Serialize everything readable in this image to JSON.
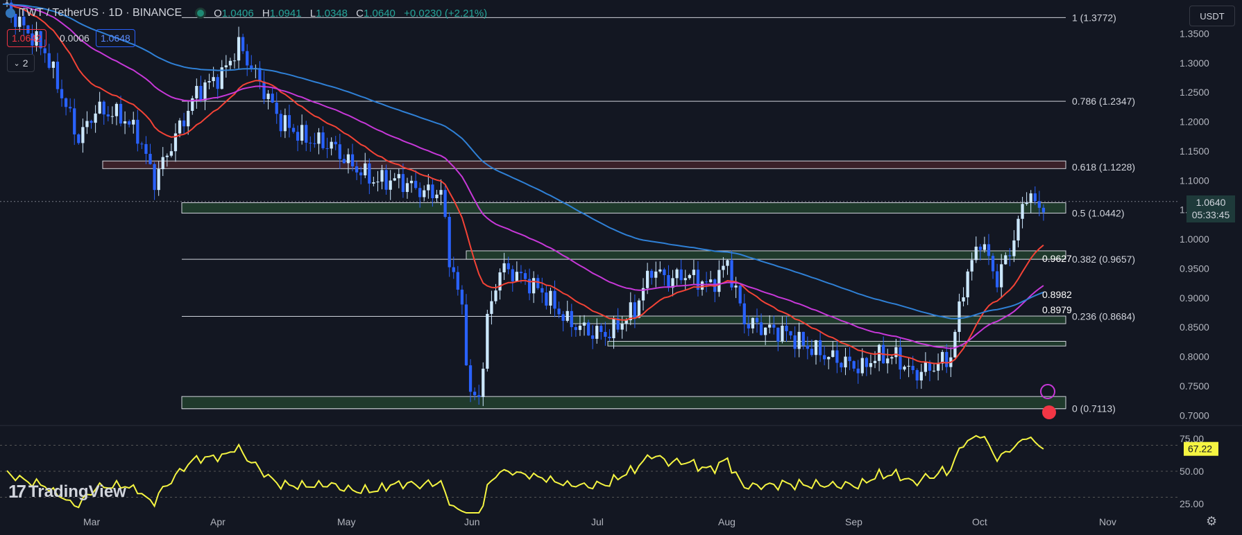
{
  "header": {
    "symbol_title": "TWT / TetherUS · 1D · BINANCE",
    "ohlc": {
      "o_label": "O",
      "o": "1.0406",
      "h_label": "H",
      "h": "1.0941",
      "l_label": "L",
      "l": "1.0348",
      "c_label": "C",
      "c": "1.0640",
      "change": "+0.0230 (+2.21%)"
    },
    "sell_price": "1.0642",
    "spread": "0.0006",
    "buy_price": "1.0648",
    "indicator_count": "2",
    "currency_button": "USDT"
  },
  "branding": {
    "logo_text": "TradingView",
    "logo_mark": "17"
  },
  "current_price_tag": {
    "price": "1.0640",
    "countdown": "05:33:45"
  },
  "indicator_badges": [
    {
      "value": "0.9627",
      "color": "#f23645"
    },
    {
      "value": "0.8982",
      "color": "#2962ff"
    },
    {
      "value": "0.8979",
      "color": "#e040fb"
    }
  ],
  "colors": {
    "background": "#131722",
    "up": "#cce8ff",
    "down": "#2962ff",
    "ema20": "#f44336",
    "ema50": "#c738d8",
    "ema100": "#2f80d6",
    "rsi": "#f5f542",
    "fib_line": "#d1d4dc",
    "zone_green": "#1f3a2c",
    "zone_red": "#3b2129"
  },
  "chart_data": {
    "type": "candlestick",
    "x_ticks": [
      "Mar",
      "Apr",
      "May",
      "Jun",
      "Jul",
      "Aug",
      "Sep",
      "Oct",
      "Nov"
    ],
    "y_ticks": [
      "1.3500",
      "1.3000",
      "1.2500",
      "1.2000",
      "1.1500",
      "1.1000",
      "1.0500",
      "1.0000",
      "0.9500",
      "0.9000",
      "0.8500",
      "0.8000",
      "0.7500",
      "0.7000"
    ],
    "ylim": [
      0.685,
      1.4
    ],
    "fib_levels": [
      {
        "label": "1 (1.3772)",
        "value": 1.3772
      },
      {
        "label": "0.786 (1.2347)",
        "value": 1.2347
      },
      {
        "label": "0.618 (1.1228)",
        "value": 1.1228
      },
      {
        "label": "0.5 (1.0442)",
        "value": 1.0442
      },
      {
        "label": "0.382 (0.9657)",
        "value": 0.9657
      },
      {
        "label": "0.236 (0.8684)",
        "value": 0.8684
      },
      {
        "label": "0 (0.7113)",
        "value": 0.7113
      }
    ],
    "zones": [
      {
        "from": "Mar",
        "to": "end",
        "low": 1.12,
        "high": 1.133,
        "kind": "red"
      },
      {
        "from": "Mar-end",
        "to": "end",
        "low": 1.0442,
        "high": 1.062,
        "kind": "green"
      },
      {
        "from": "May-end",
        "to": "end",
        "low": 0.9657,
        "high": 0.98,
        "kind": "green"
      },
      {
        "from": "Jun-end",
        "to": "end",
        "low": 0.856,
        "high": 0.869,
        "kind": "green"
      },
      {
        "from": "Jul",
        "to": "end",
        "low": 0.818,
        "high": 0.826,
        "kind": "green"
      },
      {
        "from": "Mar-end",
        "to": "end",
        "low": 0.7113,
        "high": 0.732,
        "kind": "green"
      }
    ],
    "price_anchors": [
      [
        0,
        1.4
      ],
      [
        10,
        1.32
      ],
      [
        18,
        1.17
      ],
      [
        22,
        1.22
      ],
      [
        28,
        1.21
      ],
      [
        32,
        1.18
      ],
      [
        36,
        1.1
      ],
      [
        42,
        1.19
      ],
      [
        46,
        1.25
      ],
      [
        52,
        1.28
      ],
      [
        56,
        1.33
      ],
      [
        60,
        1.28
      ],
      [
        66,
        1.2
      ],
      [
        72,
        1.17
      ],
      [
        78,
        1.16
      ],
      [
        82,
        1.13
      ],
      [
        88,
        1.1
      ],
      [
        94,
        1.1
      ],
      [
        100,
        1.08
      ],
      [
        104,
        1.08
      ],
      [
        106,
        0.97
      ],
      [
        109,
        0.88
      ],
      [
        111,
        0.73
      ],
      [
        113,
        0.73
      ],
      [
        115,
        0.86
      ],
      [
        118,
        0.95
      ],
      [
        122,
        0.94
      ],
      [
        128,
        0.91
      ],
      [
        134,
        0.86
      ],
      [
        140,
        0.84
      ],
      [
        144,
        0.84
      ],
      [
        150,
        0.88
      ],
      [
        154,
        0.95
      ],
      [
        158,
        0.93
      ],
      [
        162,
        0.94
      ],
      [
        168,
        0.92
      ],
      [
        172,
        0.96
      ],
      [
        176,
        0.86
      ],
      [
        180,
        0.85
      ],
      [
        186,
        0.84
      ],
      [
        190,
        0.82
      ],
      [
        196,
        0.8
      ],
      [
        200,
        0.79
      ],
      [
        204,
        0.78
      ],
      [
        207,
        0.8
      ],
      [
        212,
        0.8
      ],
      [
        216,
        0.77
      ],
      [
        220,
        0.78
      ],
      [
        225,
        0.8
      ],
      [
        228,
        0.92
      ],
      [
        232,
        1.0
      ],
      [
        236,
        0.93
      ],
      [
        240,
        1.0
      ],
      [
        243,
        1.08
      ],
      [
        246,
        1.05
      ],
      [
        247,
        1.064
      ]
    ],
    "ema20_last": 0.9627,
    "ema50_last": 0.8979,
    "ema100_last": 0.8982,
    "rsi": {
      "y_ticks": [
        "75.00",
        "50.00",
        "25.00"
      ],
      "ylim": [
        18,
        82
      ],
      "last_label": "67.22",
      "last": 67.22,
      "overbought": 70,
      "oversold": 30
    }
  }
}
